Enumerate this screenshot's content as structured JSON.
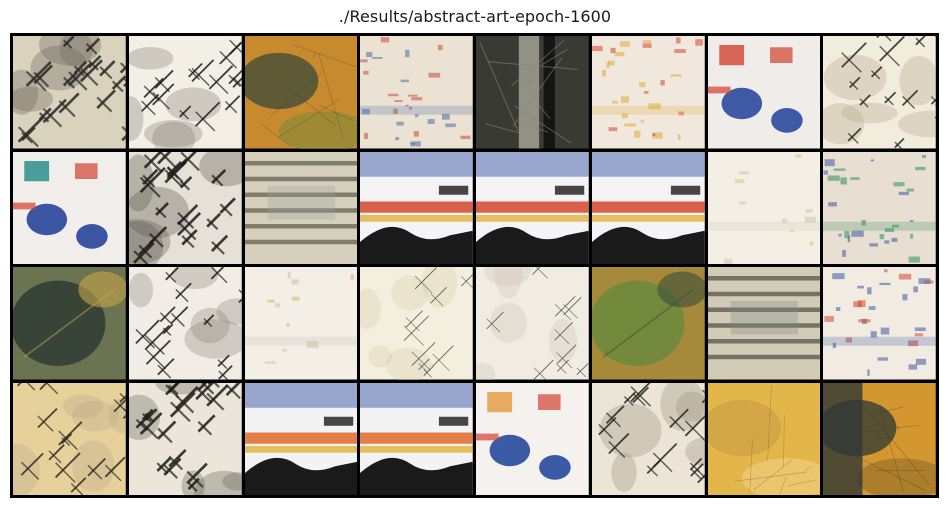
{
  "figure": {
    "title": "./Results/abstract-art-epoch-1600"
  },
  "grid": {
    "columns": 8,
    "rows": 4,
    "tiles": [
      {
        "pattern": "crosshatch-dark",
        "base": "#d9d2bd",
        "accent": "#2b2a26",
        "accent2": "#6f6a5e"
      },
      {
        "pattern": "crosshatch-sparse",
        "base": "#f3efe6",
        "accent": "#1e1e1c",
        "accent2": "#8a857a"
      },
      {
        "pattern": "ochre-field",
        "base": "#c88a2e",
        "accent": "#3b4a3a",
        "accent2": "#7c8a3c"
      },
      {
        "pattern": "confetti-light",
        "base": "#ece2d4",
        "accent": "#c94a36",
        "accent2": "#4b6ea8"
      },
      {
        "pattern": "dark-column",
        "base": "#3a3a34",
        "accent": "#b9b7a8",
        "accent2": "#121210"
      },
      {
        "pattern": "confetti-light",
        "base": "#f1e8dd",
        "accent": "#d8452d",
        "accent2": "#e0a83a"
      },
      {
        "pattern": "colorful-blue",
        "base": "#f0ecea",
        "accent": "#3f5aa4",
        "accent2": "#d2422f"
      },
      {
        "pattern": "crosshatch-sparse",
        "base": "#f2ecdc",
        "accent": "#2a2925",
        "accent2": "#b7ad90"
      },
      {
        "pattern": "colorful-blue",
        "base": "#f2eeec",
        "accent": "#3b55a2",
        "accent2": "#1f8a86"
      },
      {
        "pattern": "crosshatch-dark",
        "base": "#e6e1d6",
        "accent": "#1c1c1a",
        "accent2": "#5f5b52"
      },
      {
        "pattern": "stripes-gray",
        "base": "#d6cfbb",
        "accent": "#3a3a33",
        "accent2": "#9aa39a"
      },
      {
        "pattern": "bold-abstract",
        "base": "#f4f4f6",
        "accent": "#1a1a1a",
        "accent2": "#d4472a"
      },
      {
        "pattern": "bold-abstract",
        "base": "#f4f4f6",
        "accent": "#1a1a1a",
        "accent2": "#d4472a"
      },
      {
        "pattern": "bold-abstract",
        "base": "#f4f4f6",
        "accent": "#1a1a1a",
        "accent2": "#d4472a"
      },
      {
        "pattern": "pale-field",
        "base": "#f4efe4",
        "accent": "#e3c16a",
        "accent2": "#cfc6b2"
      },
      {
        "pattern": "confetti-light",
        "base": "#e8ded2",
        "accent": "#3d5aa6",
        "accent2": "#2f8f5f"
      },
      {
        "pattern": "green-dark",
        "base": "#6b7450",
        "accent": "#23302e",
        "accent2": "#c7a54b"
      },
      {
        "pattern": "crosshatch-sparse",
        "base": "#f1ede6",
        "accent": "#1e1d1a",
        "accent2": "#8f897d"
      },
      {
        "pattern": "pale-field",
        "base": "#f3efe6",
        "accent": "#d9b25a",
        "accent2": "#c7c0b1"
      },
      {
        "pattern": "crosshatch-faint",
        "base": "#f3eedd",
        "accent": "#4c4a42",
        "accent2": "#d9cfae"
      },
      {
        "pattern": "crosshatch-faint",
        "base": "#f0ece3",
        "accent": "#4a4842",
        "accent2": "#cfc7b4"
      },
      {
        "pattern": "green-field",
        "base": "#a68a3a",
        "accent": "#5e8a3f",
        "accent2": "#3a4f3a"
      },
      {
        "pattern": "stripes-gray",
        "base": "#d2cbb5",
        "accent": "#2a2a26",
        "accent2": "#7f8a87"
      },
      {
        "pattern": "confetti-light",
        "base": "#f1ebe2",
        "accent": "#d4472a",
        "accent2": "#3b5aa4"
      },
      {
        "pattern": "crosshatch-warm",
        "base": "#e7d19b",
        "accent": "#2b2a25",
        "accent2": "#b9aa8a"
      },
      {
        "pattern": "crosshatch-dark",
        "base": "#ece6da",
        "accent": "#1f1e1b",
        "accent2": "#6c675d"
      },
      {
        "pattern": "bold-abstract",
        "base": "#f3f3f6",
        "accent": "#1a1a1a",
        "accent2": "#e06a2a"
      },
      {
        "pattern": "bold-abstract",
        "base": "#f3f3f6",
        "accent": "#1a1a1a",
        "accent2": "#e06a2a"
      },
      {
        "pattern": "colorful-blue",
        "base": "#f4f1ee",
        "accent": "#3b5aa6",
        "accent2": "#e29a3a"
      },
      {
        "pattern": "crosshatch-sparse",
        "base": "#ece5d6",
        "accent": "#26241f",
        "accent2": "#9d9583"
      },
      {
        "pattern": "ochre-texture",
        "base": "#e3b64a",
        "accent": "#7a5a2a",
        "accent2": "#f1d48a"
      },
      {
        "pattern": "ochre-dark",
        "base": "#d4962e",
        "accent": "#2f3834",
        "accent2": "#8a6a2a"
      }
    ]
  }
}
